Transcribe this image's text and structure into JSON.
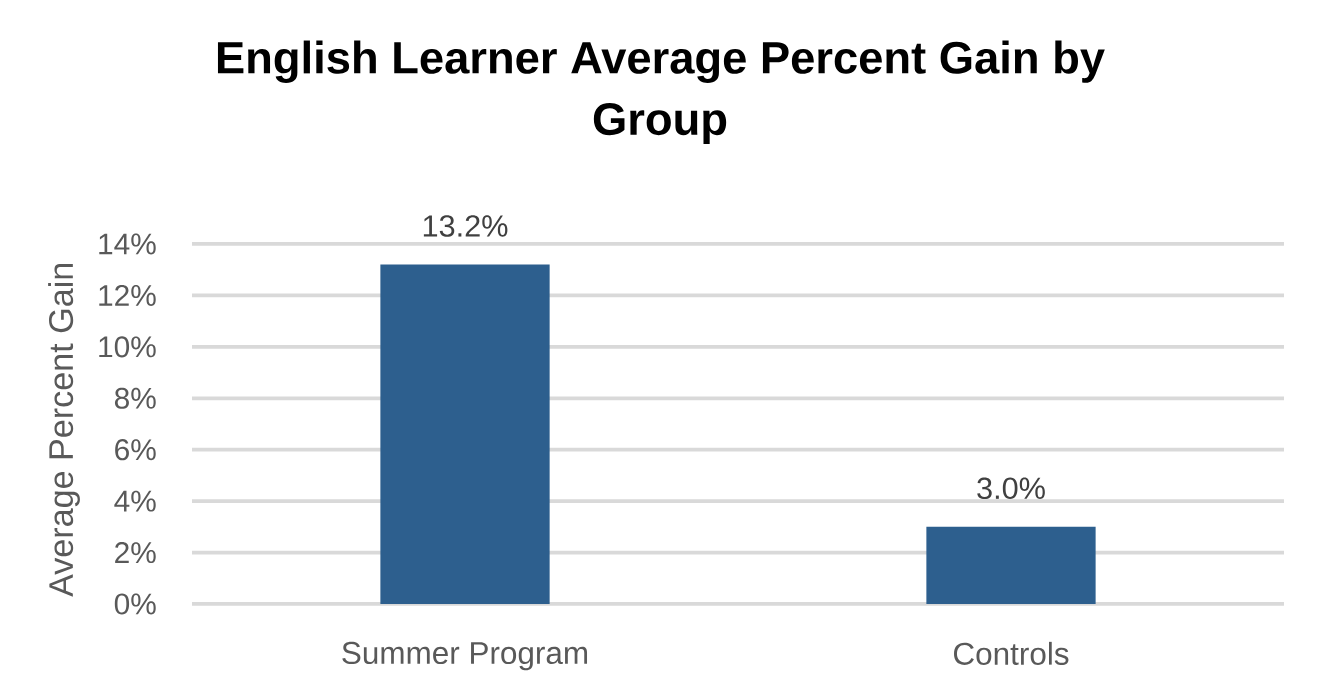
{
  "chart_data": {
    "type": "bar",
    "title": "English Learner Average Percent Gain by Group",
    "ylabel": "Average Percent Gain",
    "categories": [
      "Summer Program",
      "Controls"
    ],
    "values": [
      13.2,
      3.0
    ],
    "color": "#2d5f8e",
    "value_labels": [
      "13.2%",
      "3.0%"
    ],
    "ylim": [
      0,
      14
    ],
    "yticks": [
      {
        "value": 0,
        "label": "0%"
      },
      {
        "value": 2,
        "label": "2%"
      },
      {
        "value": 4,
        "label": "4%"
      },
      {
        "value": 6,
        "label": "6%"
      },
      {
        "value": 8,
        "label": "8%"
      },
      {
        "value": 10,
        "label": "10%"
      },
      {
        "value": 12,
        "label": "12%"
      },
      {
        "value": 14,
        "label": "14%"
      }
    ],
    "grid": "y"
  }
}
